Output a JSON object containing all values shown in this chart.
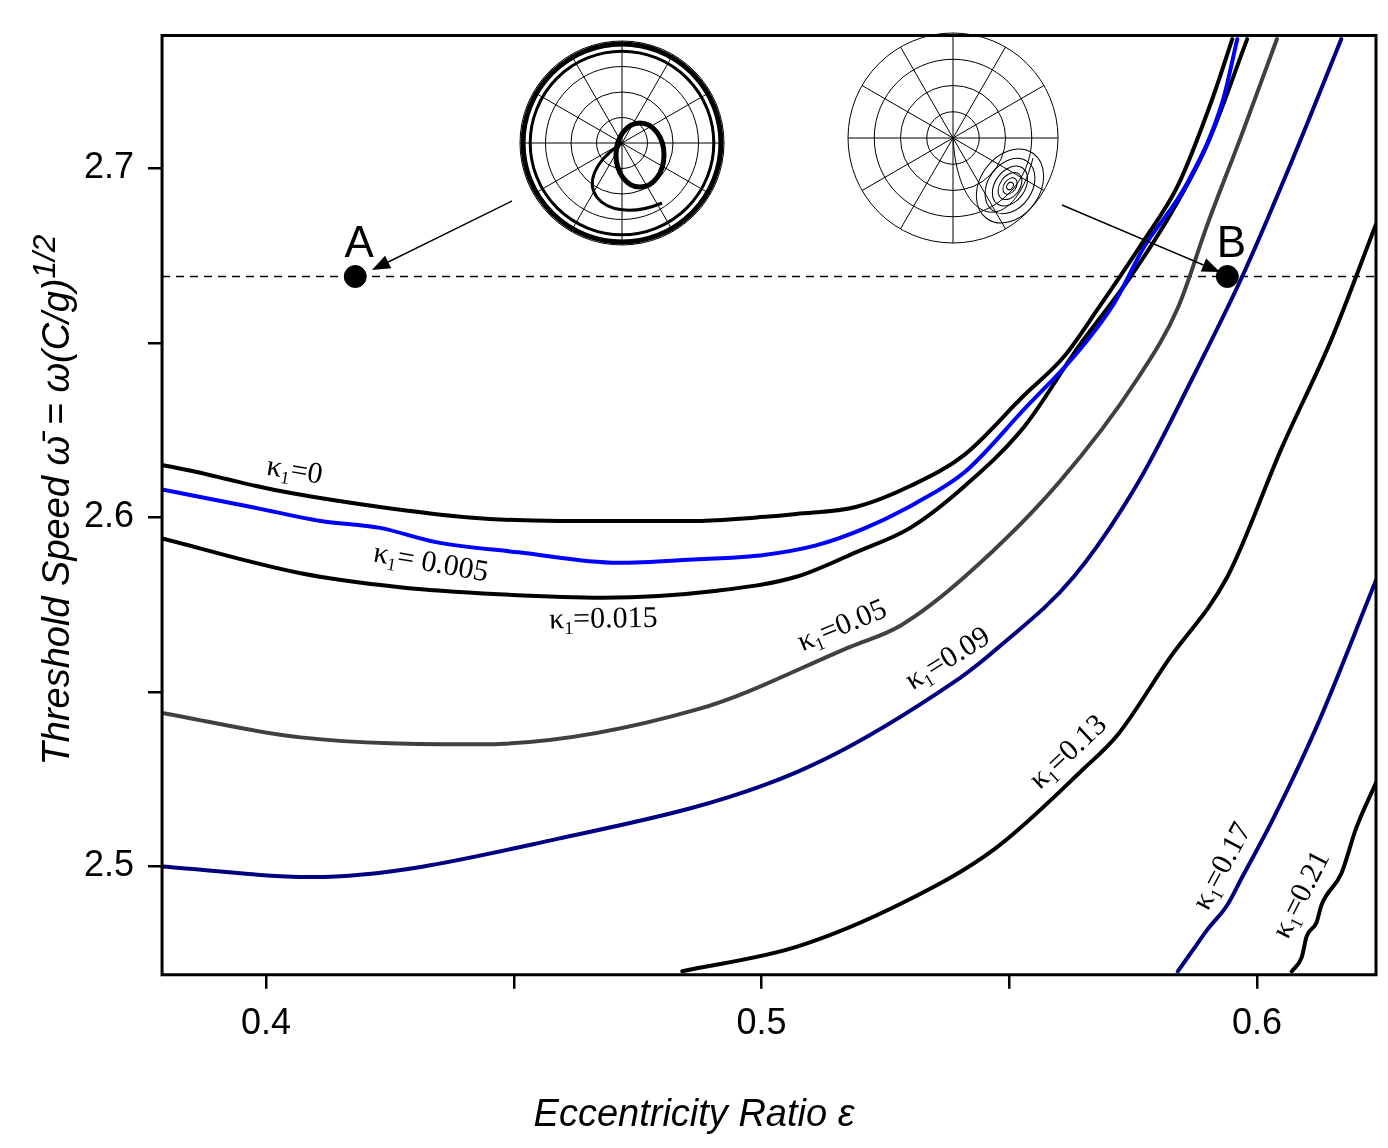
{
  "chart_data": {
    "type": "line",
    "xlabel": "Eccentricity Ratio ε",
    "ylabel": "Threshold Speed ω̄ = ω(C/g)$^{1/2}$",
    "xlim": [
      0.379,
      0.624
    ],
    "ylim": [
      2.469,
      2.738
    ],
    "xticks": [
      0.4,
      {
        "value": 0.45,
        "label": null
      },
      0.5,
      {
        "value": 0.55,
        "label": null
      },
      0.6
    ],
    "yticks": [
      2.5,
      {
        "value": 2.55,
        "label": null
      },
      2.6,
      {
        "value": 2.65,
        "label": null
      },
      2.7
    ],
    "grid": false,
    "legend": false,
    "series": [
      {
        "name": "κ$_{1}$=0",
        "color": "#000000",
        "x": [
          0.379,
          0.386,
          0.392,
          0.398,
          0.405,
          0.423,
          0.441,
          0.459,
          0.471,
          0.487,
          0.499,
          0.507,
          0.519,
          0.53,
          0.541,
          0.553,
          0.561,
          0.568,
          0.577,
          0.584,
          0.591,
          0.595
        ],
        "values": [
          2.615,
          2.613,
          2.611,
          2.609,
          2.607,
          2.603,
          2.6,
          2.599,
          2.599,
          2.599,
          2.6,
          2.601,
          2.603,
          2.609,
          2.618,
          2.635,
          2.646,
          2.66,
          2.679,
          2.695,
          2.72,
          2.737
        ]
      },
      {
        "name": "κ$_{1}$= 0.005",
        "color": "#0000ff",
        "x": [
          0.379,
          0.397,
          0.411,
          0.423,
          0.434,
          0.451,
          0.471,
          0.487,
          0.499,
          0.511,
          0.521,
          0.531,
          0.541,
          0.553,
          0.563,
          0.571,
          0.577,
          0.586,
          0.593,
          0.596
        ],
        "values": [
          2.608,
          2.603,
          2.599,
          2.597,
          2.593,
          2.59,
          2.587,
          2.588,
          2.589,
          2.592,
          2.597,
          2.604,
          2.613,
          2.631,
          2.646,
          2.661,
          2.677,
          2.696,
          2.719,
          2.737
        ]
      },
      {
        "name": "κ$_{1}$=0.015",
        "color": "#000000",
        "x": [
          0.379,
          0.407,
          0.427,
          0.447,
          0.468,
          0.491,
          0.507,
          0.519,
          0.53,
          0.541,
          0.553,
          0.564,
          0.574,
          0.583,
          0.59,
          0.598
        ],
        "values": [
          2.594,
          2.584,
          2.58,
          2.578,
          2.577,
          2.579,
          2.583,
          2.59,
          2.597,
          2.609,
          2.626,
          2.649,
          2.668,
          2.688,
          2.707,
          2.737
        ]
      },
      {
        "name": "κ$_{1}$=0.05",
        "color": "#404040",
        "x": [
          0.379,
          0.407,
          0.443,
          0.487,
          0.518,
          0.528,
          0.541,
          0.56,
          0.576,
          0.584,
          0.59,
          0.597,
          0.604
        ],
        "values": [
          2.544,
          2.537,
          2.535,
          2.545,
          2.563,
          2.569,
          2.583,
          2.61,
          2.64,
          2.66,
          2.684,
          2.71,
          2.737
        ]
      },
      {
        "name": "κ$_{1}$=0.09",
        "color": "#000080",
        "x": [
          0.379,
          0.409,
          0.459,
          0.507,
          0.54,
          0.548,
          0.563,
          0.576,
          0.587,
          0.597,
          0.607,
          0.617
        ],
        "values": [
          2.5,
          2.497,
          2.508,
          2.527,
          2.554,
          2.563,
          2.583,
          2.61,
          2.64,
          2.669,
          2.702,
          2.737
        ]
      },
      {
        "name": "κ$_{1}$=0.13",
        "color": "#000000",
        "x": [
          0.484,
          0.507,
          0.529,
          0.547,
          0.565,
          0.572,
          0.582,
          0.594,
          0.605,
          0.615,
          0.624
        ],
        "values": [
          2.47,
          2.477,
          2.49,
          2.505,
          2.528,
          2.538,
          2.559,
          2.583,
          2.62,
          2.651,
          2.684
        ]
      },
      {
        "name": "κ$_{1}$=0.17",
        "color": "#000080",
        "x": [
          0.584,
          0.587,
          0.59,
          0.594,
          0.597,
          0.603,
          0.612,
          0.624
        ],
        "values": [
          2.47,
          2.476,
          2.482,
          2.489,
          2.497,
          2.513,
          2.54,
          2.582
        ]
      },
      {
        "name": "κ$_{1}$=0.21",
        "color": "#000000",
        "x": [
          0.607,
          0.609,
          0.61,
          0.612,
          0.613,
          0.617,
          0.62,
          0.624
        ],
        "values": [
          2.47,
          2.474,
          2.48,
          2.484,
          2.489,
          2.498,
          2.511,
          2.524
        ]
      },
      {
        "type": "scatter",
        "marker": "circle",
        "color": "#000000",
        "x": [
          0.418,
          0.594
        ],
        "values": [
          2.669,
          2.669
        ]
      }
    ],
    "ref_lines": [
      {
        "axis": "y",
        "value": 2.669,
        "line_style": "dashed",
        "color": "#000000"
      }
    ],
    "annotations": [
      {
        "text": "A",
        "x": 0.418,
        "y": 2.669
      },
      {
        "text": "B",
        "x": 0.594,
        "y": 2.669
      }
    ]
  }
}
